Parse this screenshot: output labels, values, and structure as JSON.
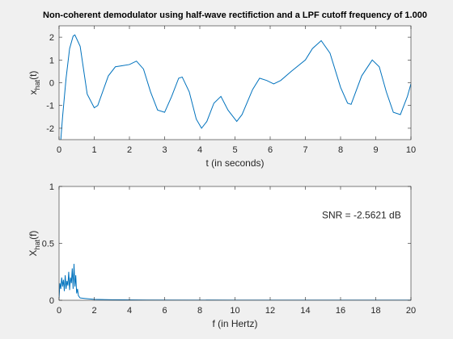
{
  "chart_data": [
    {
      "type": "line",
      "title": "Non-coherent demodulator using half-wave rectifiction and a LPF cutoff frequency of 1.000",
      "xlabel": "t (in seconds)",
      "ylabel": {
        "base": "x",
        "sub": "hat",
        "rest": "(t)"
      },
      "xlim": [
        0,
        10
      ],
      "ylim": [
        -2.5,
        2.5
      ],
      "xticks": [
        0,
        1,
        2,
        3,
        4,
        5,
        6,
        7,
        8,
        9,
        10
      ],
      "yticks": [
        -2,
        -1,
        0,
        1,
        2
      ],
      "series": [
        {
          "color": "#0072bd",
          "x": [
            0.05,
            0.1,
            0.2,
            0.3,
            0.4,
            0.45,
            0.6,
            0.8,
            1.0,
            1.1,
            1.4,
            1.6,
            1.8,
            2.0,
            2.2,
            2.4,
            2.6,
            2.8,
            3.0,
            3.2,
            3.4,
            3.5,
            3.7,
            3.9,
            4.05,
            4.2,
            4.4,
            4.6,
            4.8,
            5.05,
            5.2,
            5.5,
            5.7,
            5.9,
            6.1,
            6.3,
            6.6,
            7.0,
            7.2,
            7.45,
            7.7,
            8.0,
            8.2,
            8.3,
            8.6,
            8.9,
            9.1,
            9.3,
            9.5,
            9.7,
            9.9,
            10.0
          ],
          "values": [
            -2.5,
            -1.5,
            0.2,
            1.5,
            2.05,
            2.1,
            1.6,
            -0.5,
            -1.1,
            -1.0,
            0.3,
            0.7,
            0.75,
            0.8,
            0.95,
            0.6,
            -0.4,
            -1.2,
            -1.3,
            -0.6,
            0.2,
            0.25,
            -0.4,
            -1.6,
            -2.0,
            -1.7,
            -0.9,
            -0.6,
            -1.2,
            -1.7,
            -1.4,
            -0.3,
            0.2,
            0.1,
            -0.05,
            0.1,
            0.5,
            1.0,
            1.5,
            1.85,
            1.3,
            -0.2,
            -0.9,
            -0.95,
            0.3,
            1.0,
            0.7,
            -0.4,
            -1.3,
            -1.4,
            -0.6,
            -0.05
          ]
        }
      ]
    },
    {
      "type": "line",
      "xlabel": "f (in Hertz)",
      "ylabel": {
        "base": "X",
        "sub": "hat",
        "rest": "(f)"
      },
      "annotation": "SNR = -2.5621 dB",
      "xlim": [
        0,
        20
      ],
      "ylim": [
        0,
        1
      ],
      "xticks": [
        0,
        2,
        4,
        6,
        8,
        10,
        12,
        14,
        16,
        18,
        20
      ],
      "yticks": [
        0,
        0.5,
        1
      ],
      "series": [
        {
          "color": "#0072bd",
          "x": [
            0,
            0.05,
            0.1,
            0.15,
            0.2,
            0.25,
            0.3,
            0.35,
            0.4,
            0.45,
            0.5,
            0.55,
            0.6,
            0.65,
            0.7,
            0.75,
            0.8,
            0.85,
            0.9,
            0.95,
            1.0,
            1.05,
            1.1,
            1.15,
            1.2,
            1.5,
            2,
            3,
            5,
            10,
            20
          ],
          "values": [
            0.02,
            0.15,
            0.1,
            0.2,
            0.12,
            0.18,
            0.08,
            0.22,
            0.1,
            0.17,
            0.13,
            0.25,
            0.09,
            0.2,
            0.15,
            0.28,
            0.1,
            0.32,
            0.12,
            0.22,
            0.06,
            0.1,
            0.04,
            0.03,
            0.02,
            0.015,
            0.008,
            0.004,
            0.002,
            0.001,
            0.0005
          ]
        }
      ]
    }
  ]
}
